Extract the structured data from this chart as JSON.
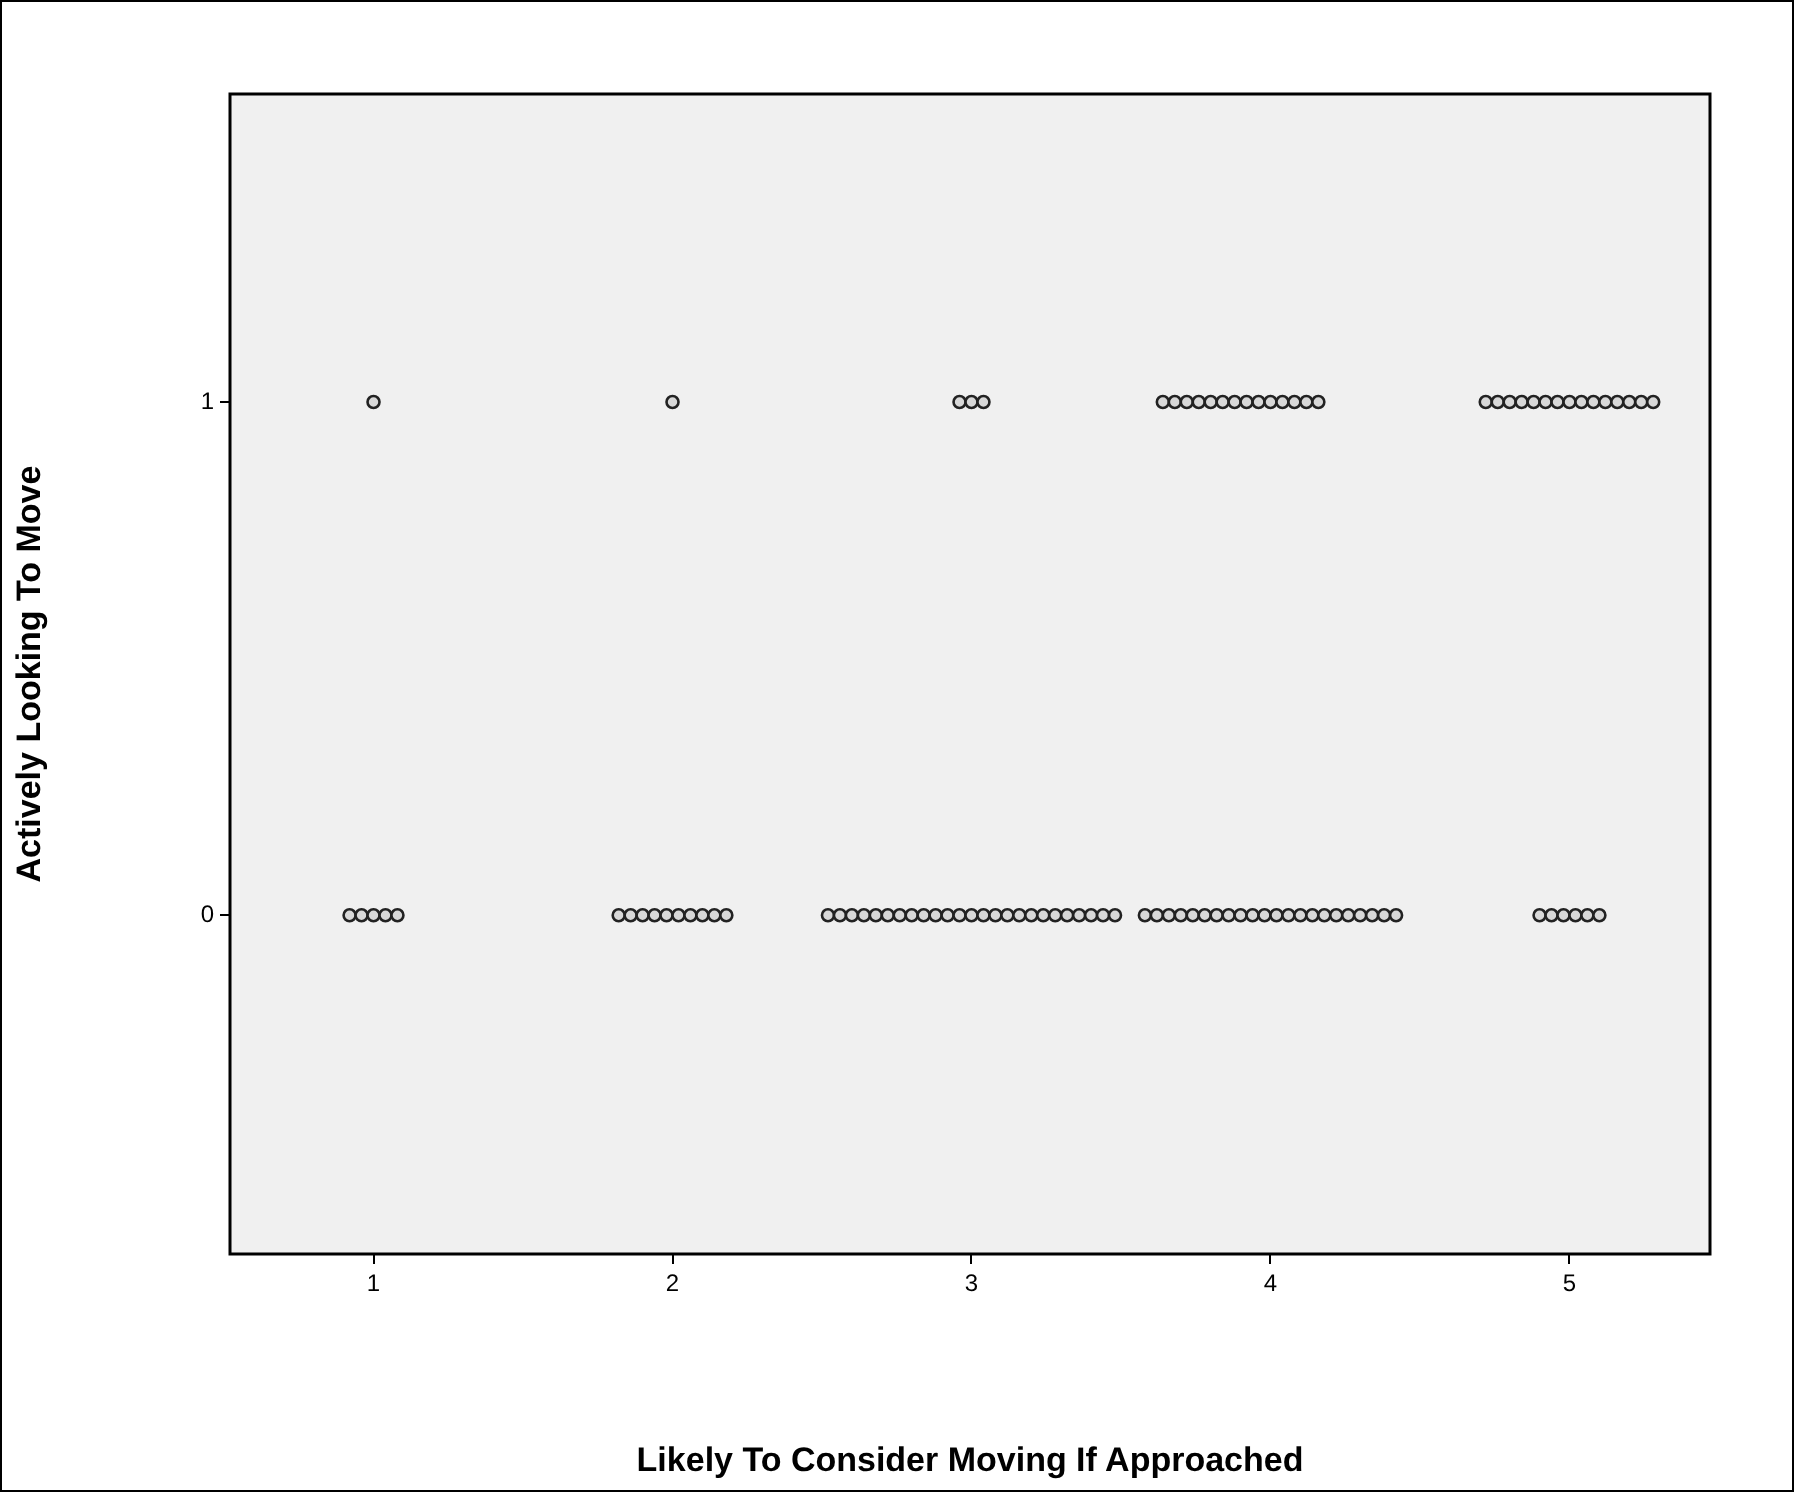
{
  "chart_data": {
    "type": "scatter",
    "xlabel": "Likely To Consider Moving If Approached",
    "ylabel": "Actively Looking To Move",
    "xlim": [
      0.52,
      5.47
    ],
    "ylim": [
      -0.66,
      1.6
    ],
    "xticks": [
      1,
      2,
      3,
      4,
      5
    ],
    "yticks": [
      0,
      1
    ],
    "grid": false,
    "legend": false,
    "marker": "circle",
    "series": [
      {
        "color": "#222222",
        "x": [
          1,
          2,
          2.96,
          3,
          3.04,
          3.64,
          3.68,
          3.72,
          3.76,
          3.8,
          3.84,
          3.88,
          3.92,
          3.96,
          4,
          4.04,
          4.08,
          4.12,
          4.16,
          4.72,
          4.76,
          4.8,
          4.84,
          4.88,
          4.92,
          4.96,
          5,
          5.04,
          5.08,
          5.12,
          5.16,
          5.2,
          5.24,
          5.28,
          0.92,
          0.96,
          1,
          1.04,
          1.08,
          1.82,
          1.86,
          1.9,
          1.94,
          1.98,
          2.02,
          2.06,
          2.1,
          2.14,
          2.18,
          2.52,
          2.56,
          2.6,
          2.64,
          2.68,
          2.72,
          2.76,
          2.8,
          2.84,
          2.88,
          2.92,
          2.96,
          3,
          3.04,
          3.08,
          3.12,
          3.16,
          3.2,
          3.24,
          3.28,
          3.32,
          3.36,
          3.4,
          3.44,
          3.48,
          3.58,
          3.62,
          3.66,
          3.7,
          3.74,
          3.78,
          3.82,
          3.86,
          3.9,
          3.94,
          3.98,
          4.02,
          4.06,
          4.1,
          4.14,
          4.18,
          4.22,
          4.26,
          4.3,
          4.34,
          4.38,
          4.42,
          4.9,
          4.94,
          4.98,
          5.02,
          5.06,
          5.1
        ],
        "values": [
          1,
          1,
          1,
          1,
          1,
          1,
          1,
          1,
          1,
          1,
          1,
          1,
          1,
          1,
          1,
          1,
          1,
          1,
          1,
          1,
          1,
          1,
          1,
          1,
          1,
          1,
          1,
          1,
          1,
          1,
          1,
          1,
          1,
          1,
          0,
          0,
          0,
          0,
          0,
          0,
          0,
          0,
          0,
          0,
          0,
          0,
          0,
          0,
          0,
          0,
          0,
          0,
          0,
          0,
          0,
          0,
          0,
          0,
          0,
          0,
          0,
          0,
          0,
          0,
          0,
          0,
          0,
          0,
          0,
          0,
          0,
          0,
          0,
          0,
          0,
          0,
          0,
          0,
          0,
          0,
          0,
          0,
          0,
          0,
          0,
          0,
          0,
          0,
          0,
          0,
          0,
          0,
          0,
          0,
          0,
          0,
          0,
          0,
          0,
          0,
          0,
          0
        ]
      }
    ]
  }
}
